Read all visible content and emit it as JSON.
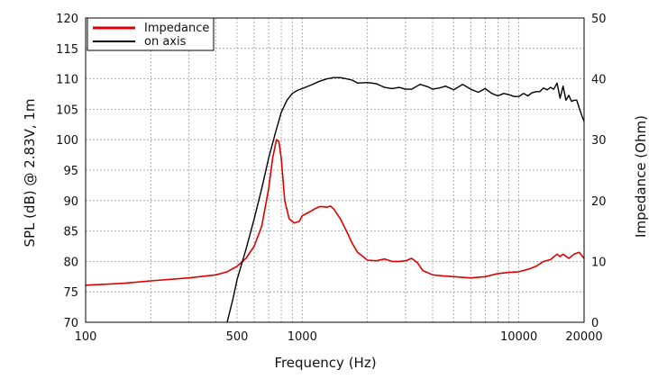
{
  "chart_data": {
    "type": "line",
    "xlabel": "Frequency (Hz)",
    "ylabel": "SPL (dB) @ 2.83V, 1m",
    "y2label": "Impedance (Ohm)",
    "x_scale": "log",
    "xlim": [
      100,
      20000
    ],
    "ylim": [
      70,
      120
    ],
    "y2lim": [
      0,
      50
    ],
    "grid": true,
    "legend_position": "top-left",
    "x_ticks": [
      {
        "value": 100,
        "label": "100"
      },
      {
        "value": 500,
        "label": "500"
      },
      {
        "value": 1000,
        "label": "1000"
      },
      {
        "value": 10000,
        "label": "10000"
      },
      {
        "value": 20000,
        "label": "20000"
      }
    ],
    "y_ticks": [
      {
        "value": 70,
        "label": "70"
      },
      {
        "value": 75,
        "label": "75"
      },
      {
        "value": 80,
        "label": "80"
      },
      {
        "value": 85,
        "label": "85"
      },
      {
        "value": 90,
        "label": "90"
      },
      {
        "value": 95,
        "label": "95"
      },
      {
        "value": 100,
        "label": "100"
      },
      {
        "value": 105,
        "label": "105"
      },
      {
        "value": 110,
        "label": "110"
      },
      {
        "value": 115,
        "label": "115"
      },
      {
        "value": 120,
        "label": "120"
      }
    ],
    "y2_ticks": [
      {
        "value": 0,
        "label": "0"
      },
      {
        "value": 10,
        "label": "10"
      },
      {
        "value": 20,
        "label": "20"
      },
      {
        "value": 30,
        "label": "30"
      },
      {
        "value": 40,
        "label": "40"
      },
      {
        "value": 50,
        "label": "50"
      }
    ],
    "series": [
      {
        "name": "Impedance",
        "color": "#dd0000",
        "axis": "right",
        "x": [
          100,
          150,
          200,
          300,
          400,
          450,
          500,
          550,
          600,
          650,
          700,
          730,
          760,
          780,
          800,
          830,
          870,
          920,
          970,
          1000,
          1050,
          1100,
          1150,
          1200,
          1250,
          1300,
          1350,
          1400,
          1500,
          1600,
          1700,
          1800,
          2000,
          2200,
          2400,
          2600,
          2800,
          3000,
          3200,
          3400,
          3600,
          4000,
          4500,
          5000,
          6000,
          7000,
          8000,
          9000,
          10000,
          11000,
          12000,
          13000,
          14000,
          15000,
          15500,
          16000,
          17000,
          18000,
          19000,
          20000
        ],
        "values": [
          6.1,
          6.4,
          6.8,
          7.3,
          7.8,
          8.3,
          9.2,
          10.5,
          12.5,
          15.8,
          22,
          27,
          30,
          29.7,
          27,
          20,
          17,
          16.3,
          16.6,
          17.5,
          17.9,
          18.3,
          18.7,
          19,
          19,
          18.9,
          19.1,
          18.6,
          17,
          15,
          13,
          11.5,
          10.2,
          10.1,
          10.4,
          10,
          10,
          10.1,
          10.5,
          9.8,
          8.5,
          7.8,
          7.6,
          7.5,
          7.3,
          7.5,
          8,
          8.2,
          8.3,
          8.7,
          9.2,
          10,
          10.3,
          11.2,
          10.8,
          11.2,
          10.5,
          11.2,
          11.5,
          10.5
        ]
      },
      {
        "name": "on axis",
        "color": "#000000",
        "axis": "left",
        "x": [
          450,
          480,
          500,
          550,
          600,
          650,
          700,
          750,
          800,
          850,
          900,
          950,
          1000,
          1100,
          1200,
          1300,
          1400,
          1500,
          1600,
          1700,
          1800,
          2000,
          2200,
          2400,
          2600,
          2800,
          3000,
          3200,
          3500,
          3800,
          4000,
          4300,
          4600,
          5000,
          5500,
          6000,
          6500,
          7000,
          7500,
          8000,
          8500,
          9000,
          9500,
          10000,
          10500,
          11000,
          11500,
          12000,
          12500,
          13000,
          13500,
          14000,
          14500,
          15000,
          15500,
          16000,
          16500,
          17000,
          17500,
          18000,
          18500,
          19000,
          19500,
          20000
        ],
        "values": [
          70,
          74,
          77,
          82,
          87,
          92,
          97,
          101,
          104.5,
          106.5,
          107.6,
          108.1,
          108.4,
          109,
          109.6,
          110,
          110.2,
          110.2,
          110,
          109.8,
          109.3,
          109.4,
          109.2,
          108.6,
          108.4,
          108.6,
          108.3,
          108.3,
          109.1,
          108.7,
          108.3,
          108.5,
          108.8,
          108.2,
          109.1,
          108.3,
          107.8,
          108.4,
          107.6,
          107.2,
          107.6,
          107.4,
          107.1,
          107.1,
          107.6,
          107.2,
          107.7,
          107.9,
          107.9,
          108.5,
          108.2,
          108.6,
          108.3,
          109.3,
          106.8,
          108.8,
          106.5,
          107.3,
          106.3,
          106.5,
          106.5,
          105.2,
          104,
          103
        ]
      }
    ]
  }
}
